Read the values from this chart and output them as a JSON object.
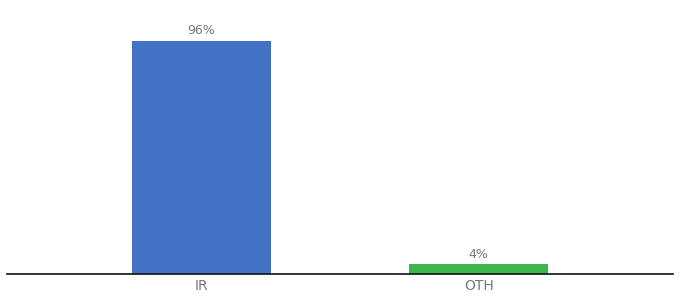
{
  "categories": [
    "IR",
    "OTH"
  ],
  "values": [
    96,
    4
  ],
  "bar_colors": [
    "#4472c4",
    "#3cb54a"
  ],
  "labels": [
    "96%",
    "4%"
  ],
  "background_color": "#ffffff",
  "ylim": [
    0,
    110
  ],
  "xlim": [
    0.3,
    2.7
  ],
  "x_positions": [
    1,
    2
  ],
  "bar_width": 0.5,
  "xlabel_fontsize": 10,
  "label_fontsize": 9,
  "tick_color": "#777777"
}
